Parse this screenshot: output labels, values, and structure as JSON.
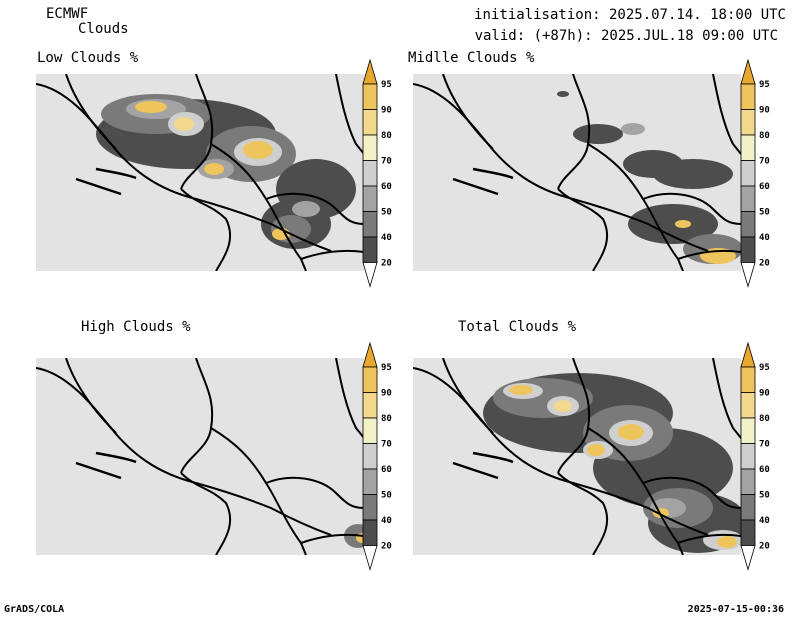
{
  "header": {
    "model": "ECMWF",
    "product": "Clouds",
    "initialisation": "initialisation: 2025.07.14. 18:00 UTC",
    "valid": "valid: (+87h): 2025.JUL.18 09:00 UTC"
  },
  "panels": [
    {
      "title": "Low Clouds %"
    },
    {
      "title": "Midlle Clouds %"
    },
    {
      "title": "High Clouds %"
    },
    {
      "title": "Total Clouds %"
    }
  ],
  "colorbar": {
    "levels": [
      "20",
      "40",
      "50",
      "60",
      "70",
      "80",
      "90",
      "95"
    ],
    "colors": {
      "below20": "#ffffff",
      "20-40": "#4d4d4d",
      "40-50": "#7a7a7a",
      "50-60": "#a3a3a3",
      "60-70": "#cfcfcf",
      "70-80": "#f3f1c8",
      "80-90": "#f2d98e",
      "90-95": "#eec45c",
      "above95": "#e8a830"
    }
  },
  "colors": {
    "map_background": "#e3e3e3",
    "border": "#000000"
  },
  "footer": {
    "left": "GrADS/COLA",
    "right": "2025-07-15-00:36"
  }
}
